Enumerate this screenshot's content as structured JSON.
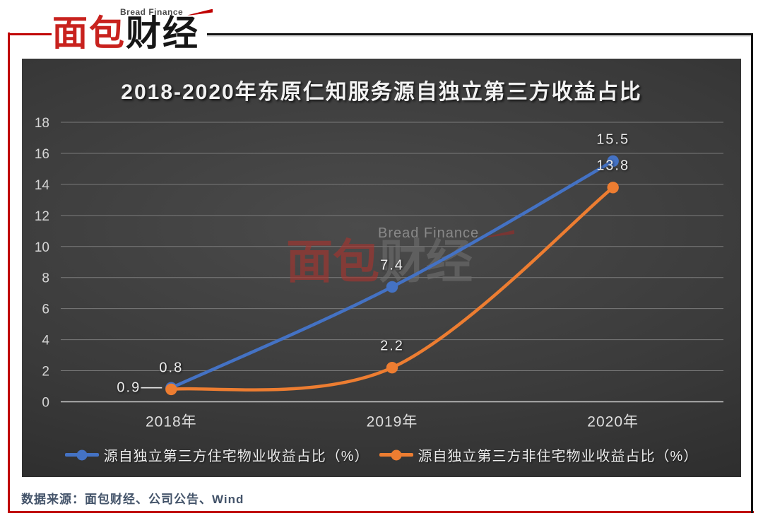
{
  "header": {
    "logo": {
      "tagline": "Bread Finance",
      "name_red": "面包",
      "name_black": "财经"
    }
  },
  "watermark": {
    "tagline": "Bread Finance",
    "name_red": "面包",
    "name_black": "财经"
  },
  "footer": {
    "source": "数据来源：面包财经、公司公告、Wind"
  },
  "colors": {
    "accent_red": "#C00000",
    "frame_black": "#141414",
    "series_blue": "#4472C4",
    "series_orange": "#ED7D31",
    "gridline": "#7a7a7a",
    "axis_line": "#c9c9c9",
    "axis_text": "#d6d6d6",
    "data_label_text": "#ececec",
    "footer_text": "#44546A"
  },
  "chart_data": {
    "type": "line",
    "title": "2018-2020年东原仁知服务源自独立第三方收益占比",
    "categories": [
      "2018年",
      "2019年",
      "2020年"
    ],
    "series": [
      {
        "name": "源自独立第三方住宅物业收益占比（%）",
        "color": "#4472C4",
        "values": [
          0.9,
          7.4,
          15.5
        ]
      },
      {
        "name": "源自独立第三方非住宅物业收益占比（%）",
        "color": "#ED7D31",
        "values": [
          0.8,
          2.2,
          13.8
        ]
      }
    ],
    "ylim": [
      0,
      18
    ],
    "ytick_step": 2,
    "grid": true,
    "smooth": true,
    "legend_position": "bottom",
    "data_labels": true,
    "label_decimals": 1,
    "label_overrides": [
      {
        "series": 0,
        "point": 0,
        "position": "left",
        "leader": true
      }
    ]
  }
}
